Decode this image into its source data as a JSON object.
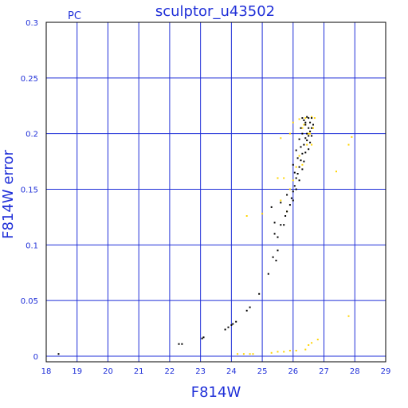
{
  "chart_data": {
    "type": "scatter",
    "title": "sculptor_u43502",
    "subtitle": "PC",
    "xlabel": "F814W",
    "ylabel": "F814W error",
    "xlim": [
      18,
      29
    ],
    "ylim": [
      -0.005,
      0.3
    ],
    "xticks": [
      18,
      19,
      20,
      21,
      22,
      23,
      24,
      25,
      26,
      27,
      28,
      29
    ],
    "yticks": [
      0,
      0.05,
      0.1,
      0.15,
      0.2,
      0.25,
      0.3
    ],
    "ytick_labels": [
      "0",
      "0.05",
      "0.1",
      "0.15",
      "0.2",
      "0.25",
      "0.3"
    ],
    "grid": true,
    "colors": {
      "grid": "#1f2fd8",
      "axis": "#000000",
      "text": "#1f2fd8",
      "black": "#000000",
      "yellow": "#ffd400"
    },
    "series": [
      {
        "color": "black",
        "points": [
          [
            18.4,
            0.002
          ],
          [
            22.3,
            0.011
          ],
          [
            22.4,
            0.011
          ],
          [
            23.1,
            0.017
          ],
          [
            23.05,
            0.016
          ],
          [
            23.8,
            0.024
          ],
          [
            23.9,
            0.026
          ],
          [
            24.0,
            0.028
          ],
          [
            24.05,
            0.029
          ],
          [
            24.15,
            0.031
          ],
          [
            24.5,
            0.041
          ],
          [
            24.6,
            0.044
          ],
          [
            24.9,
            0.056
          ],
          [
            25.2,
            0.074
          ],
          [
            25.35,
            0.089
          ],
          [
            25.45,
            0.086
          ],
          [
            25.4,
            0.11
          ],
          [
            25.5,
            0.107
          ],
          [
            25.6,
            0.118
          ],
          [
            25.75,
            0.126
          ],
          [
            25.8,
            0.13
          ],
          [
            25.9,
            0.136
          ],
          [
            25.95,
            0.142
          ],
          [
            26.0,
            0.148
          ],
          [
            26.05,
            0.153
          ],
          [
            26.1,
            0.16
          ],
          [
            26.15,
            0.164
          ],
          [
            26.2,
            0.17
          ],
          [
            26.25,
            0.176
          ],
          [
            26.3,
            0.182
          ],
          [
            26.35,
            0.19
          ],
          [
            26.4,
            0.196
          ],
          [
            26.45,
            0.2
          ],
          [
            26.5,
            0.205
          ],
          [
            26.55,
            0.21
          ],
          [
            26.6,
            0.214
          ],
          [
            26.3,
            0.2
          ],
          [
            26.4,
            0.21
          ],
          [
            26.5,
            0.198
          ],
          [
            26.55,
            0.192
          ],
          [
            26.2,
            0.195
          ],
          [
            26.1,
            0.185
          ],
          [
            26.25,
            0.205
          ],
          [
            26.35,
            0.212
          ],
          [
            26.45,
            0.215
          ],
          [
            26.6,
            0.205
          ],
          [
            26.0,
            0.172
          ],
          [
            26.05,
            0.165
          ],
          [
            26.15,
            0.178
          ],
          [
            26.3,
            0.168
          ],
          [
            26.35,
            0.175
          ],
          [
            26.4,
            0.183
          ],
          [
            26.5,
            0.186
          ],
          [
            26.55,
            0.202
          ],
          [
            26.65,
            0.208
          ],
          [
            26.2,
            0.158
          ],
          [
            26.1,
            0.15
          ],
          [
            26.0,
            0.14
          ],
          [
            25.8,
            0.145
          ],
          [
            25.7,
            0.118
          ],
          [
            25.4,
            0.12
          ],
          [
            25.5,
            0.095
          ],
          [
            25.3,
            0.134
          ],
          [
            25.6,
            0.138
          ],
          [
            26.25,
            0.188
          ],
          [
            26.45,
            0.194
          ],
          [
            26.6,
            0.198
          ],
          [
            26.3,
            0.214
          ],
          [
            26.5,
            0.214
          ],
          [
            26.4,
            0.208
          ]
        ]
      },
      {
        "color": "yellow",
        "points": [
          [
            24.2,
            0.002
          ],
          [
            24.4,
            0.002
          ],
          [
            24.6,
            0.002
          ],
          [
            24.7,
            0.002
          ],
          [
            25.3,
            0.003
          ],
          [
            25.5,
            0.004
          ],
          [
            25.7,
            0.004
          ],
          [
            25.9,
            0.005
          ],
          [
            26.1,
            0.005
          ],
          [
            26.4,
            0.006
          ],
          [
            26.5,
            0.01
          ],
          [
            26.6,
            0.012
          ],
          [
            26.8,
            0.015
          ],
          [
            27.8,
            0.036
          ],
          [
            24.5,
            0.126
          ],
          [
            25.0,
            0.128
          ],
          [
            25.6,
            0.14
          ],
          [
            25.7,
            0.16
          ],
          [
            25.9,
            0.2
          ],
          [
            26.0,
            0.21
          ],
          [
            26.2,
            0.213
          ],
          [
            26.4,
            0.214
          ],
          [
            26.6,
            0.215
          ],
          [
            26.7,
            0.214
          ],
          [
            26.3,
            0.205
          ],
          [
            26.55,
            0.2
          ],
          [
            26.45,
            0.19
          ],
          [
            26.2,
            0.18
          ],
          [
            26.1,
            0.17
          ],
          [
            26.3,
            0.172
          ],
          [
            26.6,
            0.19
          ],
          [
            26.0,
            0.158
          ],
          [
            25.9,
            0.15
          ],
          [
            25.8,
            0.13
          ],
          [
            27.4,
            0.166
          ],
          [
            27.8,
            0.19
          ],
          [
            27.9,
            0.197
          ],
          [
            25.5,
            0.16
          ],
          [
            25.6,
            0.196
          ],
          [
            26.65,
            0.205
          ],
          [
            26.5,
            0.2
          ],
          [
            26.35,
            0.208
          ]
        ]
      }
    ]
  }
}
